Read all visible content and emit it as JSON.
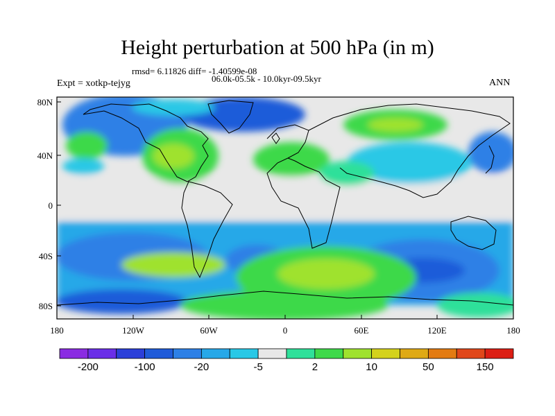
{
  "title": "Height perturbation at 500 hPa (in m)",
  "stats": "rmsd= 6.11826 diff= -1.40599e-08",
  "experiment": "Expt = xotkp-tejyg",
  "period": "06.0k-05.5k - 10.0kyr-09.5kyr",
  "season": "ANN",
  "lat_ticks": [
    "80N",
    "40N",
    "0",
    "40S",
    "80S"
  ],
  "lon_ticks": [
    "180",
    "120W",
    "60W",
    "0",
    "60E",
    "120E",
    "180"
  ],
  "colorbar": {
    "colors": [
      "#8a2be2",
      "#6a2ee8",
      "#2b3fd9",
      "#1f5bd9",
      "#2d80e6",
      "#27a8e8",
      "#29c8e6",
      "#e8e8e8",
      "#2fe09a",
      "#3ed94a",
      "#9fe22e",
      "#d4d21c",
      "#dfa915",
      "#e37b12",
      "#e0471a",
      "#dc1e14"
    ],
    "labels": [
      "-200",
      "-100",
      "-20",
      "-5",
      "2",
      "10",
      "50",
      "150"
    ]
  },
  "legend_colors": {
    "land_outline": "#000000",
    "neutral": "#e8e8e8"
  }
}
